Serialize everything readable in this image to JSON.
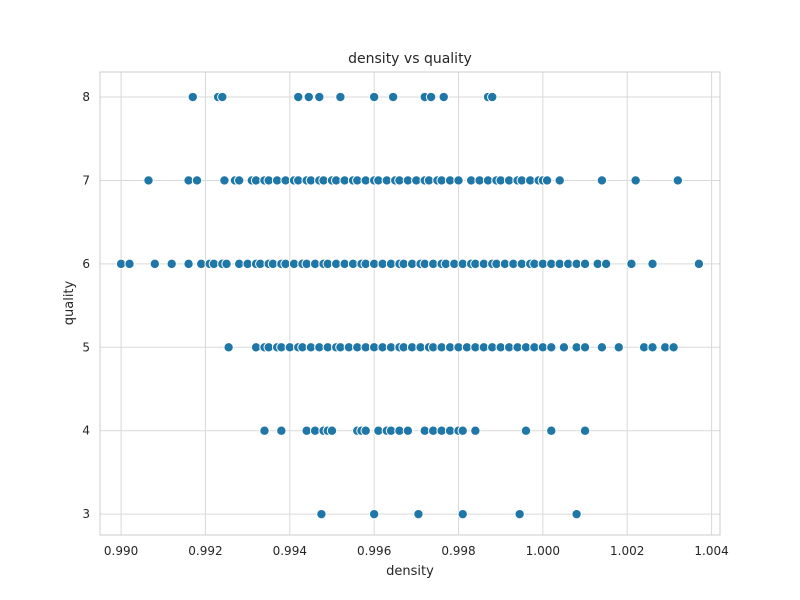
{
  "chart_data": {
    "type": "scatter",
    "title": "density vs quality",
    "xlabel": "density",
    "ylabel": "quality",
    "xlim": [
      0.9895,
      1.0042
    ],
    "ylim": [
      2.75,
      8.3
    ],
    "x_ticks": [
      0.99,
      0.992,
      0.994,
      0.996,
      0.998,
      1.0,
      1.002,
      1.004
    ],
    "x_tick_labels": [
      "0.990",
      "0.992",
      "0.994",
      "0.996",
      "0.998",
      "1.000",
      "1.002",
      "1.004"
    ],
    "y_ticks": [
      3,
      4,
      5,
      6,
      7,
      8
    ],
    "y_tick_labels": [
      "3",
      "4",
      "5",
      "6",
      "7",
      "8"
    ],
    "grid": true,
    "marker_color": "#1f77a8",
    "marker_edge_color": "#ffffff",
    "series": [
      {
        "points": [
          [
            0.9917,
            8
          ],
          [
            0.9923,
            8
          ],
          [
            0.9924,
            8
          ],
          [
            0.9942,
            8
          ],
          [
            0.99445,
            8
          ],
          [
            0.9947,
            8
          ],
          [
            0.9952,
            8
          ],
          [
            0.996,
            8
          ],
          [
            0.99645,
            8
          ],
          [
            0.9972,
            8
          ],
          [
            0.99735,
            8
          ],
          [
            0.99765,
            8
          ],
          [
            0.9987,
            8
          ],
          [
            0.9988,
            8
          ],
          [
            0.99065,
            7
          ],
          [
            0.9916,
            7
          ],
          [
            0.9918,
            7
          ],
          [
            0.99245,
            7
          ],
          [
            0.9927,
            7
          ],
          [
            0.9928,
            7
          ],
          [
            0.9931,
            7
          ],
          [
            0.9932,
            7
          ],
          [
            0.9934,
            7
          ],
          [
            0.9935,
            7
          ],
          [
            0.9937,
            7
          ],
          [
            0.9939,
            7
          ],
          [
            0.9941,
            7
          ],
          [
            0.9942,
            7
          ],
          [
            0.9944,
            7
          ],
          [
            0.9945,
            7
          ],
          [
            0.9947,
            7
          ],
          [
            0.9948,
            7
          ],
          [
            0.995,
            7
          ],
          [
            0.9951,
            7
          ],
          [
            0.9953,
            7
          ],
          [
            0.9955,
            7
          ],
          [
            0.9956,
            7
          ],
          [
            0.9958,
            7
          ],
          [
            0.996,
            7
          ],
          [
            0.9961,
            7
          ],
          [
            0.9963,
            7
          ],
          [
            0.9965,
            7
          ],
          [
            0.9966,
            7
          ],
          [
            0.9968,
            7
          ],
          [
            0.997,
            7
          ],
          [
            0.9972,
            7
          ],
          [
            0.9973,
            7
          ],
          [
            0.9975,
            7
          ],
          [
            0.9976,
            7
          ],
          [
            0.9978,
            7
          ],
          [
            0.998,
            7
          ],
          [
            0.9983,
            7
          ],
          [
            0.9985,
            7
          ],
          [
            0.9987,
            7
          ],
          [
            0.9989,
            7
          ],
          [
            0.999,
            7
          ],
          [
            0.9992,
            7
          ],
          [
            0.9994,
            7
          ],
          [
            0.9995,
            7
          ],
          [
            0.9997,
            7
          ],
          [
            0.9999,
            7
          ],
          [
            1.0,
            7
          ],
          [
            1.0001,
            7
          ],
          [
            1.0004,
            7
          ],
          [
            1.0014,
            7
          ],
          [
            1.0022,
            7
          ],
          [
            1.0032,
            7
          ],
          [
            0.99,
            6
          ],
          [
            0.9902,
            6
          ],
          [
            0.9908,
            6
          ],
          [
            0.9912,
            6
          ],
          [
            0.9916,
            6
          ],
          [
            0.9919,
            6
          ],
          [
            0.9921,
            6
          ],
          [
            0.9922,
            6
          ],
          [
            0.9924,
            6
          ],
          [
            0.9925,
            6
          ],
          [
            0.9928,
            6
          ],
          [
            0.993,
            6
          ],
          [
            0.9932,
            6
          ],
          [
            0.9933,
            6
          ],
          [
            0.9935,
            6
          ],
          [
            0.9936,
            6
          ],
          [
            0.9938,
            6
          ],
          [
            0.9939,
            6
          ],
          [
            0.9941,
            6
          ],
          [
            0.9943,
            6
          ],
          [
            0.9944,
            6
          ],
          [
            0.9946,
            6
          ],
          [
            0.9948,
            6
          ],
          [
            0.9949,
            6
          ],
          [
            0.9951,
            6
          ],
          [
            0.9953,
            6
          ],
          [
            0.9955,
            6
          ],
          [
            0.9957,
            6
          ],
          [
            0.9958,
            6
          ],
          [
            0.996,
            6
          ],
          [
            0.9962,
            6
          ],
          [
            0.9964,
            6
          ],
          [
            0.9966,
            6
          ],
          [
            0.9967,
            6
          ],
          [
            0.9969,
            6
          ],
          [
            0.9971,
            6
          ],
          [
            0.9972,
            6
          ],
          [
            0.9974,
            6
          ],
          [
            0.9976,
            6
          ],
          [
            0.9977,
            6
          ],
          [
            0.9979,
            6
          ],
          [
            0.9981,
            6
          ],
          [
            0.9983,
            6
          ],
          [
            0.9984,
            6
          ],
          [
            0.9986,
            6
          ],
          [
            0.9988,
            6
          ],
          [
            0.9989,
            6
          ],
          [
            0.9991,
            6
          ],
          [
            0.9993,
            6
          ],
          [
            0.9995,
            6
          ],
          [
            0.9997,
            6
          ],
          [
            0.9998,
            6
          ],
          [
            1.0,
            6
          ],
          [
            1.0002,
            6
          ],
          [
            1.0004,
            6
          ],
          [
            1.0006,
            6
          ],
          [
            1.0008,
            6
          ],
          [
            1.001,
            6
          ],
          [
            1.0013,
            6
          ],
          [
            1.0015,
            6
          ],
          [
            1.0021,
            6
          ],
          [
            1.0026,
            6
          ],
          [
            1.0037,
            6
          ],
          [
            0.99255,
            5
          ],
          [
            0.9932,
            5
          ],
          [
            0.9934,
            5
          ],
          [
            0.9935,
            5
          ],
          [
            0.9937,
            5
          ],
          [
            0.9938,
            5
          ],
          [
            0.994,
            5
          ],
          [
            0.9942,
            5
          ],
          [
            0.9943,
            5
          ],
          [
            0.9945,
            5
          ],
          [
            0.9947,
            5
          ],
          [
            0.9949,
            5
          ],
          [
            0.9951,
            5
          ],
          [
            0.9952,
            5
          ],
          [
            0.9954,
            5
          ],
          [
            0.9956,
            5
          ],
          [
            0.9958,
            5
          ],
          [
            0.996,
            5
          ],
          [
            0.9962,
            5
          ],
          [
            0.9964,
            5
          ],
          [
            0.9966,
            5
          ],
          [
            0.9967,
            5
          ],
          [
            0.9969,
            5
          ],
          [
            0.9971,
            5
          ],
          [
            0.9973,
            5
          ],
          [
            0.9974,
            5
          ],
          [
            0.9976,
            5
          ],
          [
            0.9978,
            5
          ],
          [
            0.998,
            5
          ],
          [
            0.9982,
            5
          ],
          [
            0.9984,
            5
          ],
          [
            0.9986,
            5
          ],
          [
            0.9988,
            5
          ],
          [
            0.999,
            5
          ],
          [
            0.9992,
            5
          ],
          [
            0.9994,
            5
          ],
          [
            0.9996,
            5
          ],
          [
            0.9998,
            5
          ],
          [
            1.0,
            5
          ],
          [
            1.0002,
            5
          ],
          [
            1.0005,
            5
          ],
          [
            1.0008,
            5
          ],
          [
            1.001,
            5
          ],
          [
            1.0014,
            5
          ],
          [
            1.0018,
            5
          ],
          [
            1.0024,
            5
          ],
          [
            1.0026,
            5
          ],
          [
            1.0029,
            5
          ],
          [
            1.0031,
            5
          ],
          [
            0.9934,
            4
          ],
          [
            0.9938,
            4
          ],
          [
            0.9944,
            4
          ],
          [
            0.9946,
            4
          ],
          [
            0.9948,
            4
          ],
          [
            0.9949,
            4
          ],
          [
            0.995,
            4
          ],
          [
            0.9956,
            4
          ],
          [
            0.9957,
            4
          ],
          [
            0.9958,
            4
          ],
          [
            0.9961,
            4
          ],
          [
            0.9963,
            4
          ],
          [
            0.9964,
            4
          ],
          [
            0.9966,
            4
          ],
          [
            0.9968,
            4
          ],
          [
            0.9972,
            4
          ],
          [
            0.9974,
            4
          ],
          [
            0.9976,
            4
          ],
          [
            0.9978,
            4
          ],
          [
            0.998,
            4
          ],
          [
            0.9981,
            4
          ],
          [
            0.9984,
            4
          ],
          [
            0.9996,
            4
          ],
          [
            1.0002,
            4
          ],
          [
            1.001,
            4
          ],
          [
            0.99475,
            3
          ],
          [
            0.996,
            3
          ],
          [
            0.99705,
            3
          ],
          [
            0.9981,
            3
          ],
          [
            0.99945,
            3
          ],
          [
            1.0008,
            3
          ]
        ]
      }
    ]
  }
}
